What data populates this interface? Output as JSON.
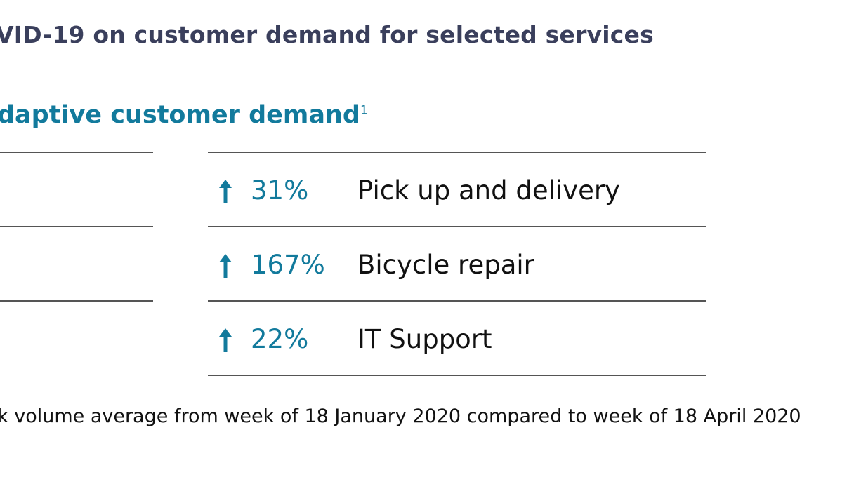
{
  "header": {
    "title": "VID-19 on customer demand for selected services",
    "subtitle": "daptive customer demand",
    "subtitle_footnote_mark": "1"
  },
  "colors": {
    "title": "#3a3f5c",
    "accent": "#127a9c",
    "rule": "#555555",
    "text": "#111111"
  },
  "chart_data": {
    "type": "table",
    "title": "VID-19 on customer demand for selected services",
    "subtitle": "daptive customer demand",
    "rows": [
      {
        "direction": "up",
        "change": "31%",
        "value": 31,
        "service": "Pick up and delivery",
        "icon": "arrow-up-icon"
      },
      {
        "direction": "up",
        "change": "167%",
        "value": 167,
        "service": "Bicycle repair",
        "icon": "arrow-up-icon"
      },
      {
        "direction": "up",
        "change": "22%",
        "value": 22,
        "service": "IT Support",
        "icon": "arrow-up-icon"
      }
    ]
  },
  "footnote": "k volume average from week of 18 January 2020 compared to week of 18 April 2020"
}
